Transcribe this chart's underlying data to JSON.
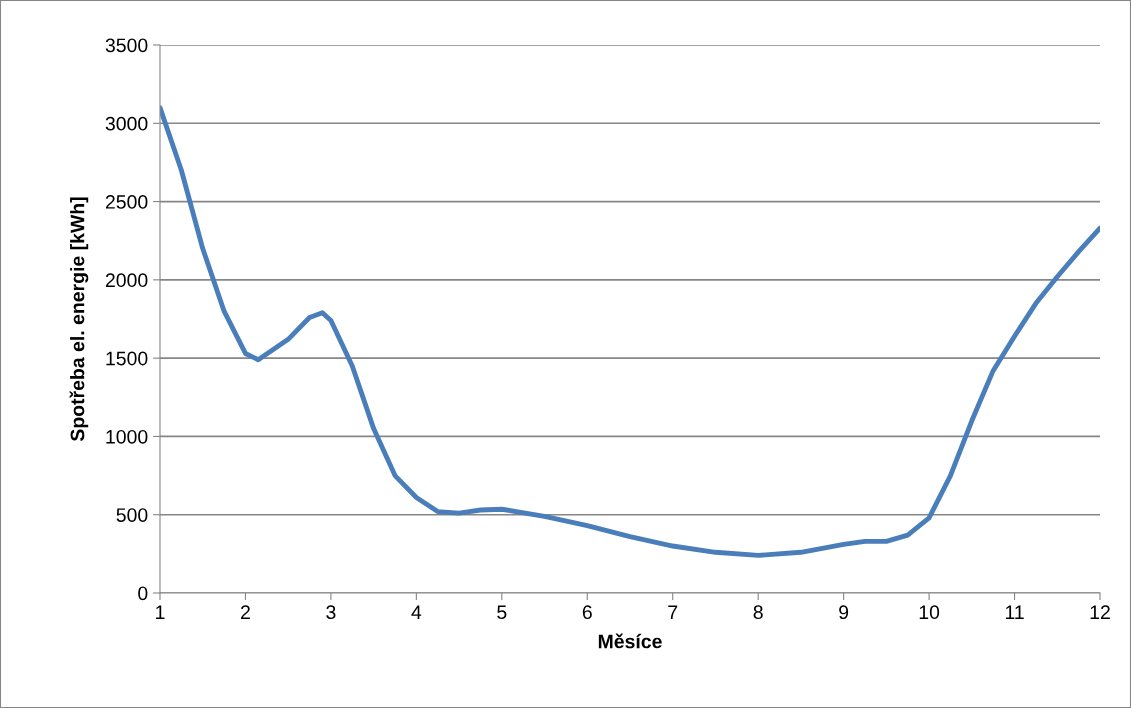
{
  "chart_data": {
    "type": "line",
    "xlabel": "Měsíce",
    "ylabel": "Spotřeba el. energie [kWh]",
    "x": [
      1,
      1.25,
      1.5,
      1.75,
      2,
      2.15,
      2.5,
      2.75,
      2.9,
      3,
      3.25,
      3.5,
      3.75,
      4,
      4.25,
      4.5,
      4.75,
      5,
      5.5,
      6,
      6.5,
      7,
      7.5,
      8,
      8.5,
      9,
      9.25,
      9.5,
      9.75,
      10,
      10.25,
      10.5,
      10.75,
      11,
      11.25,
      11.5,
      11.75,
      12
    ],
    "series": [
      {
        "color": "#4a7ebb",
        "values": [
          3100,
          2700,
          2200,
          1800,
          1530,
          1490,
          1620,
          1760,
          1790,
          1740,
          1450,
          1050,
          750,
          610,
          520,
          510,
          530,
          535,
          490,
          430,
          360,
          300,
          260,
          240,
          260,
          310,
          330,
          330,
          370,
          480,
          750,
          1100,
          1420,
          1640,
          1850,
          2020,
          2180,
          2330
        ]
      }
    ],
    "xlim": [
      1,
      12
    ],
    "xticks": [
      1,
      2,
      3,
      4,
      5,
      6,
      7,
      8,
      9,
      10,
      11,
      12
    ],
    "ylim": [
      0,
      3500
    ],
    "yticks": [
      0,
      500,
      1000,
      1500,
      2000,
      2500,
      3000,
      3500
    ],
    "grid": "y",
    "legend": false,
    "marker": "none",
    "line_style": "solid"
  }
}
